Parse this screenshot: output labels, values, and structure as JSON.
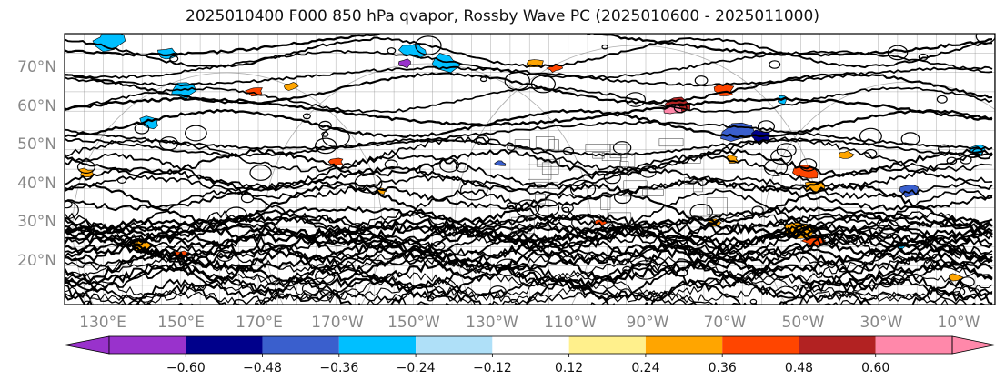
{
  "title": "2025010400 F000 850 hPa qvapor, Rossby Wave PC (2025010600 - 2025011000)",
  "lat_labels": [
    "70°N",
    "60°N",
    "50°N",
    "40°N",
    "30°N",
    "20°N"
  ],
  "lon_labels": [
    "130°E",
    "150°E",
    "170°E",
    "170°W",
    "150°W",
    "130°W",
    "110°W",
    "90°W",
    "70°W",
    "50°W",
    "30°W",
    "10°W"
  ],
  "colorbar": {
    "ticks": [
      "−0.60",
      "−0.48",
      "−0.36",
      "−0.24",
      "−0.12",
      "0.12",
      "0.24",
      "0.36",
      "0.48",
      "0.60"
    ],
    "colors": [
      "#9932cc",
      "#00008b",
      "#3a5fcd",
      "#00bfff",
      "#afe0f8",
      "#ffffff",
      "#fff08c",
      "#ffa500",
      "#ff4500",
      "#b22222",
      "#ff88aa",
      "#ff88aa"
    ]
  },
  "map": {
    "contour_color": "#000000",
    "graticule_color": "#888888"
  }
}
